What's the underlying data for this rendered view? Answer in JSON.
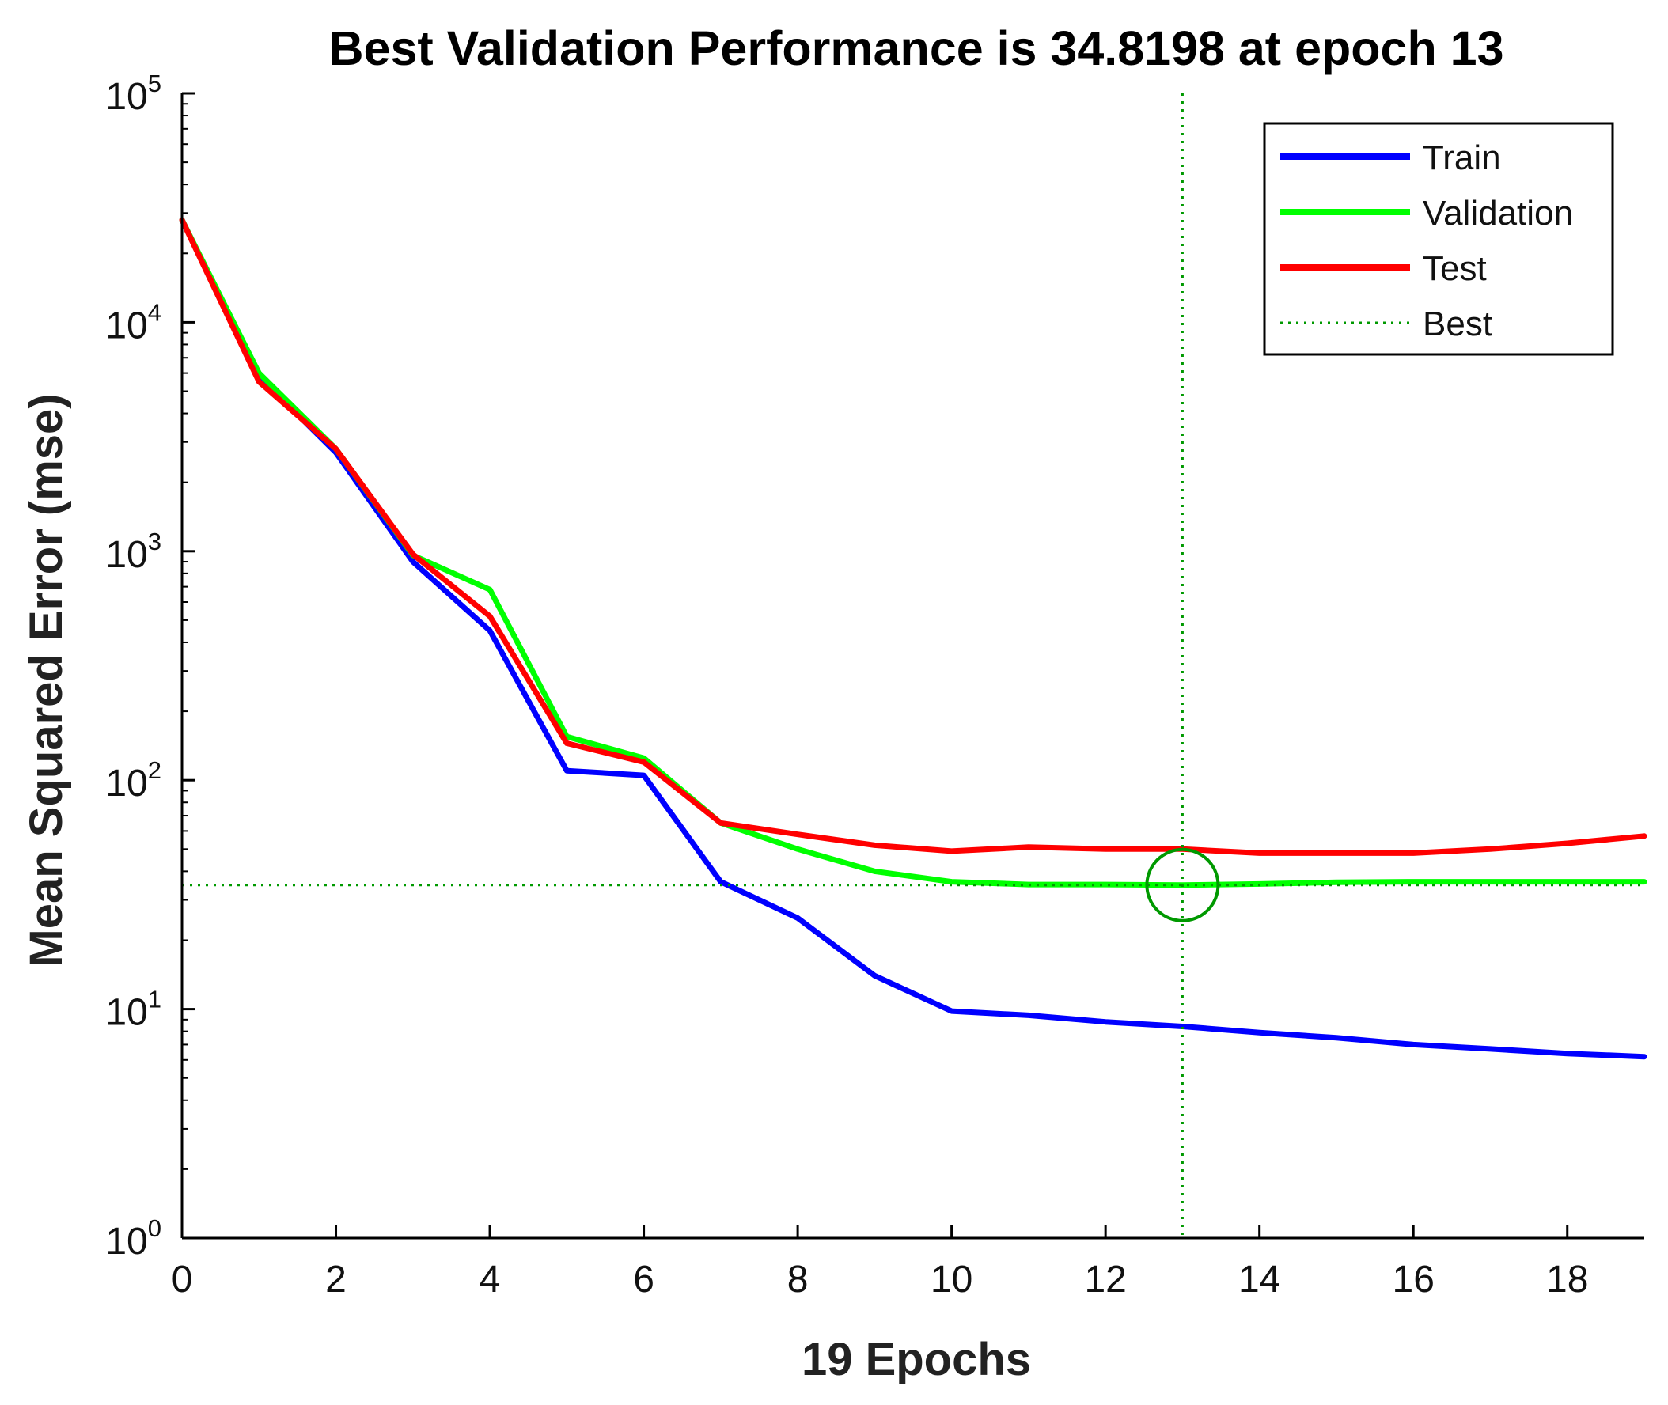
{
  "chart_data": {
    "type": "line",
    "title": "Best Validation Performance is 34.8198 at epoch 13",
    "xlabel": "19 Epochs",
    "ylabel": "Mean Squared Error  (mse)",
    "yscale": "log",
    "xlim": [
      0,
      19
    ],
    "ylim": [
      1,
      100000
    ],
    "x_ticks": [
      "0",
      "2",
      "4",
      "6",
      "8",
      "10",
      "12",
      "14",
      "16",
      "18"
    ],
    "x_tick_values": [
      0,
      2,
      4,
      6,
      8,
      10,
      12,
      14,
      16,
      18
    ],
    "y_ticks": [
      {
        "value": 1,
        "base": "10",
        "exp": "0"
      },
      {
        "value": 10,
        "base": "10",
        "exp": "1"
      },
      {
        "value": 100,
        "base": "10",
        "exp": "2"
      },
      {
        "value": 1000,
        "base": "10",
        "exp": "3"
      },
      {
        "value": 10000,
        "base": "10",
        "exp": "4"
      },
      {
        "value": 100000,
        "base": "10",
        "exp": "5"
      }
    ],
    "x": [
      0,
      1,
      2,
      3,
      4,
      5,
      6,
      7,
      8,
      9,
      10,
      11,
      12,
      13,
      14,
      15,
      16,
      17,
      18,
      19
    ],
    "series": [
      {
        "name": "Train",
        "color": "#0000ff",
        "values": [
          28000,
          5800,
          2700,
          900,
          450,
          110,
          105,
          36,
          25,
          14,
          9.8,
          9.4,
          8.8,
          8.4,
          7.9,
          7.5,
          7.0,
          6.7,
          6.4,
          6.2
        ]
      },
      {
        "name": "Validation",
        "color": "#00ff00",
        "values": [
          28000,
          6000,
          2800,
          960,
          680,
          155,
          125,
          65,
          50,
          40,
          36,
          35,
          35,
          34.8198,
          35.2,
          35.8,
          36,
          36,
          36,
          36
        ]
      },
      {
        "name": "Test",
        "color": "#ff0000",
        "values": [
          28000,
          5500,
          2800,
          970,
          520,
          145,
          120,
          65,
          58,
          52,
          49,
          51,
          50,
          50,
          48,
          48,
          48,
          50,
          53,
          57
        ]
      }
    ],
    "best": {
      "name": "Best",
      "epoch": 13,
      "value": 34.8198,
      "color": "#009900"
    },
    "legend": {
      "position": "top-right",
      "entries": [
        "Train",
        "Validation",
        "Test",
        "Best"
      ]
    }
  }
}
